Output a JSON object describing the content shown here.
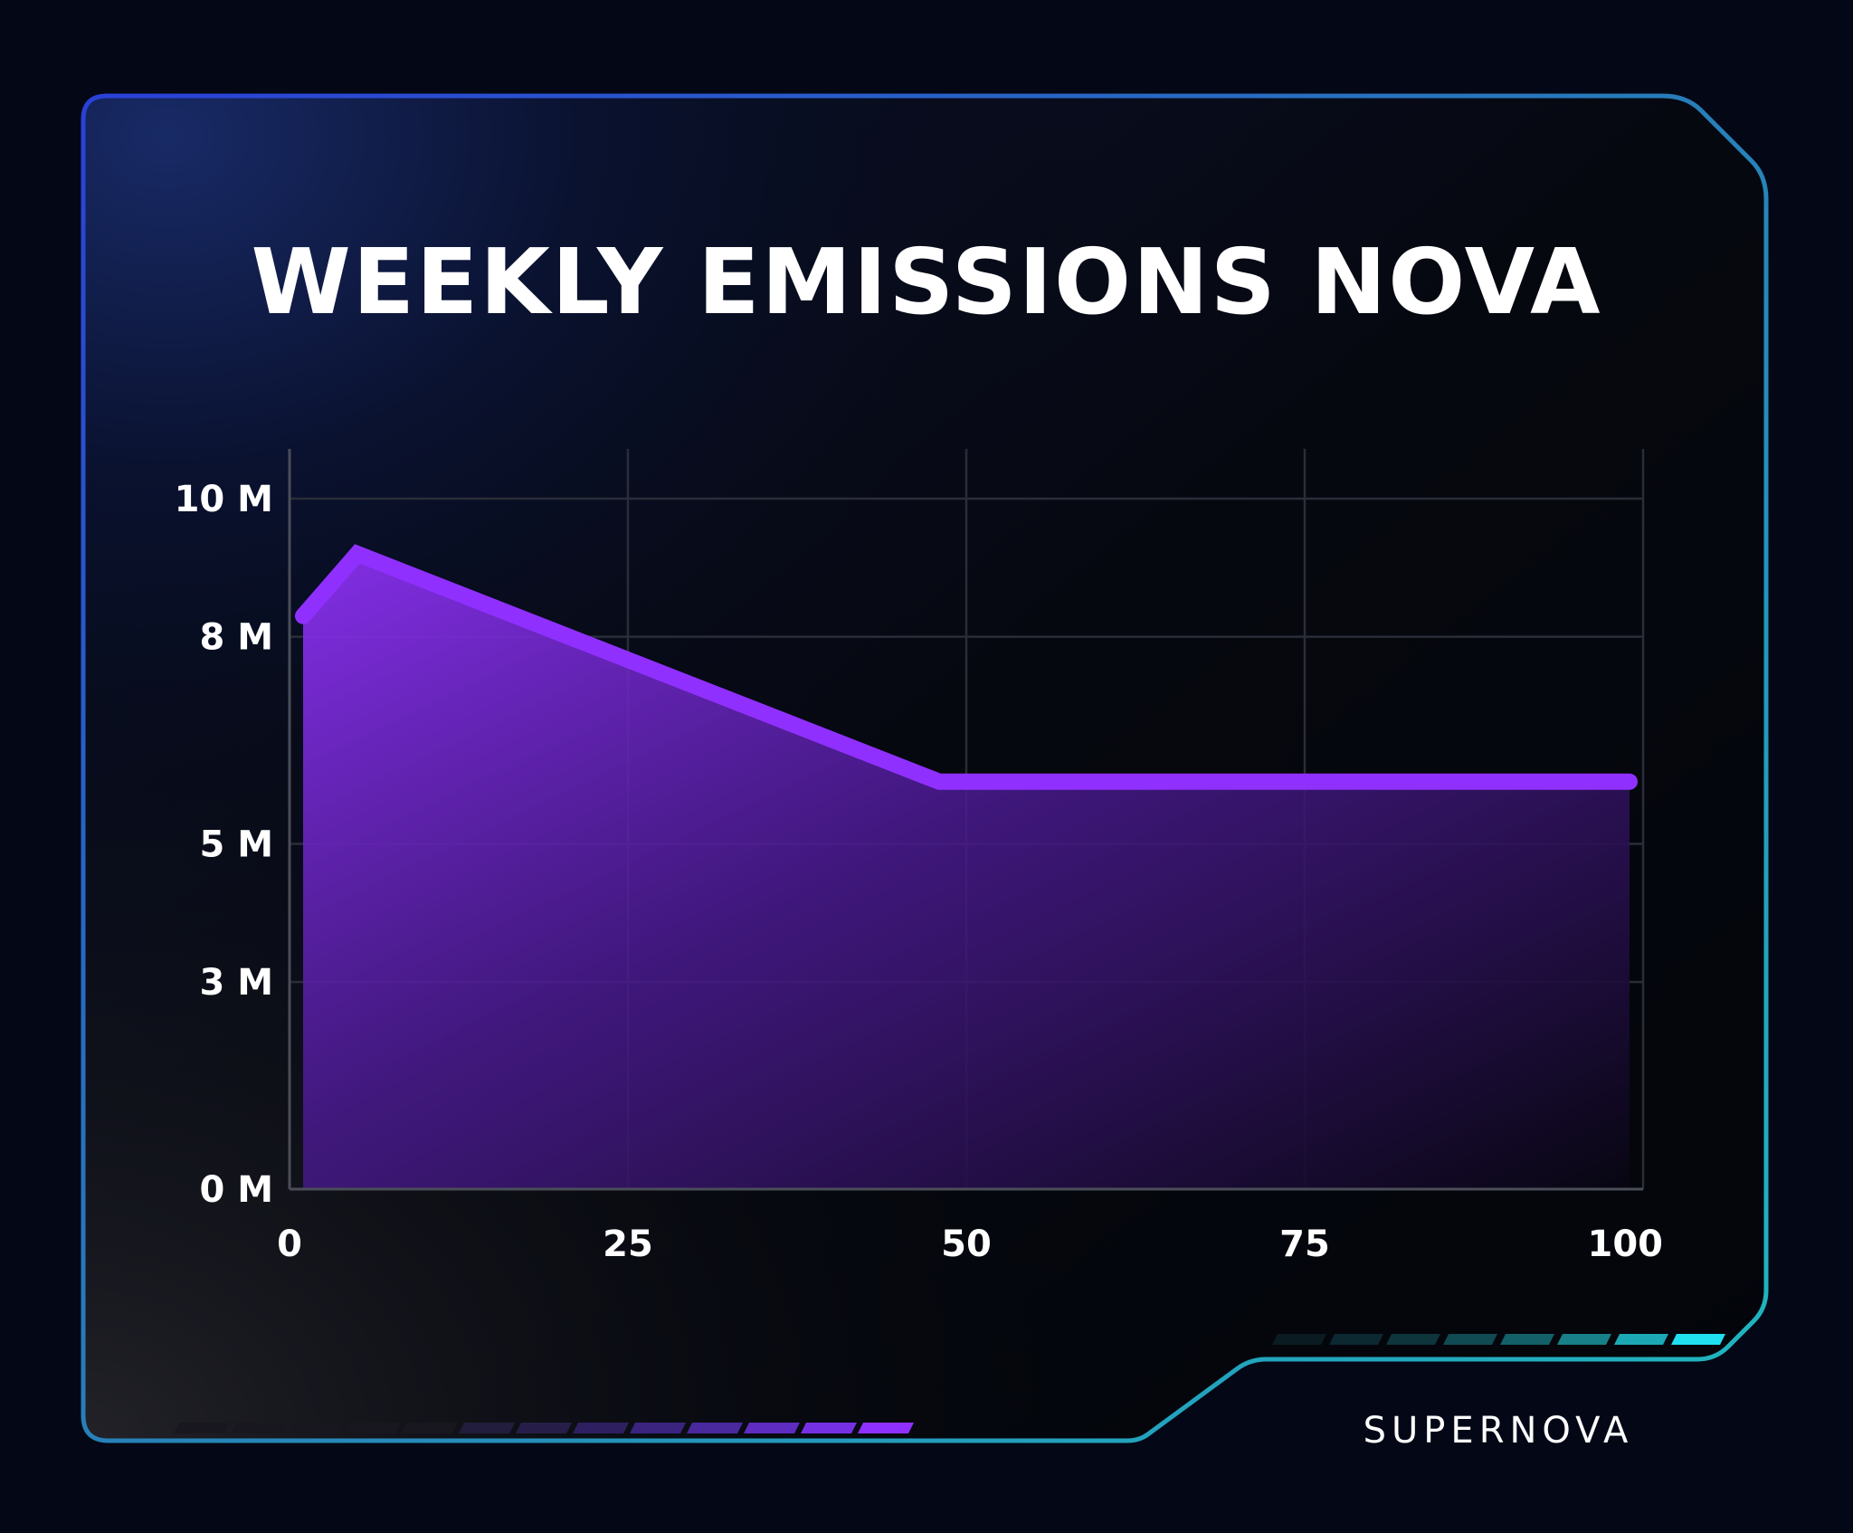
{
  "brand": "SUPERNOVA",
  "colors": {
    "background": "#040816",
    "line": "#9030ff",
    "frame_start": "#2a40d8",
    "frame_end": "#20b8c0",
    "accent_cyan": "#20e0f0"
  },
  "chart_data": {
    "type": "area",
    "title": "WEEKLY EMISSIONS NOVA",
    "xlabel": "",
    "ylabel": "",
    "xlim": [
      0,
      100
    ],
    "ylim": [
      0,
      10
    ],
    "x_ticks": [
      "0",
      "25",
      "50",
      "75",
      "100"
    ],
    "y_ticks": [
      "0 M",
      "3 M",
      "5 M",
      "8 M",
      "10 M"
    ],
    "grid": true,
    "legend": "none",
    "series": [
      {
        "x": [
          1,
          5,
          48,
          99
        ],
        "y": [
          8.3,
          9.2,
          5.9,
          5.9
        ]
      }
    ]
  }
}
